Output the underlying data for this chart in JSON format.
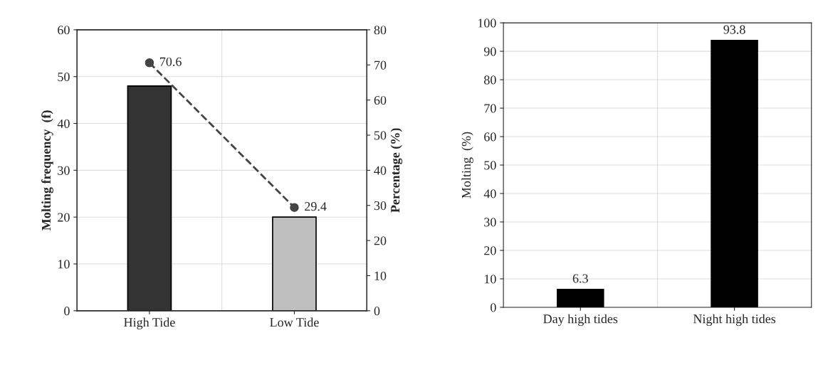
{
  "chart_data": [
    {
      "type": "bar",
      "categories": [
        "High Tide",
        "Low Tide"
      ],
      "ylabel": "Molting frequency  (f)",
      "y2label": "Percentage (%)",
      "ylim": [
        0,
        60
      ],
      "yticks": [
        0,
        10,
        20,
        30,
        40,
        50,
        60
      ],
      "y2lim": [
        0,
        80
      ],
      "y2ticks": [
        0,
        10,
        20,
        30,
        40,
        50,
        60,
        70,
        80
      ],
      "grid": true,
      "series": [
        {
          "type": "bar",
          "colors": [
            "#333333",
            "#bfbfbf"
          ],
          "values": [
            48,
            20
          ]
        },
        {
          "type": "line",
          "axis": "y2",
          "color": "#444444",
          "marker": "circle",
          "line_style": "dashed",
          "values": [
            70.6,
            29.4
          ],
          "value_labels": [
            "70.6",
            "29.4"
          ]
        }
      ]
    },
    {
      "type": "bar",
      "categories": [
        "Day high tides",
        "Night high tides"
      ],
      "ylabel": "Molting  (%)",
      "ylim": [
        0,
        100
      ],
      "yticks": [
        0,
        10,
        20,
        30,
        40,
        50,
        60,
        70,
        80,
        90,
        100
      ],
      "grid": true,
      "data_labels": true,
      "series": [
        {
          "color": "#000000",
          "values": [
            6.3,
            93.8
          ]
        }
      ]
    }
  ]
}
